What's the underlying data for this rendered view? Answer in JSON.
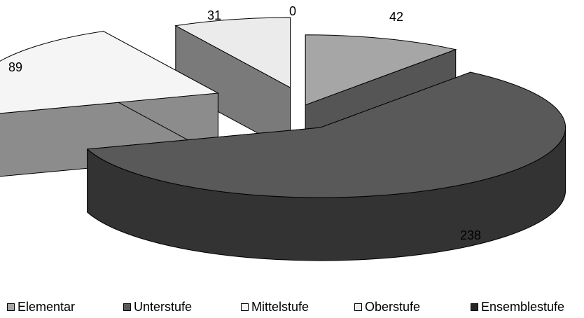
{
  "chart_data": {
    "type": "pie",
    "style": "3d-exploded",
    "title": "",
    "categories": [
      "Elementar",
      "Unterstufe",
      "Mittelstufe",
      "Oberstufe",
      "Ensemblestufe"
    ],
    "values": [
      42,
      238,
      89,
      31,
      0
    ],
    "legend": "bottom",
    "colors": {
      "Elementar": "#a6a6a6",
      "Unterstufe": "#595959",
      "Mittelstufe": "#f5f5f5",
      "Oberstufe": "#ebebeb",
      "Ensemblestufe": "#262626"
    }
  }
}
